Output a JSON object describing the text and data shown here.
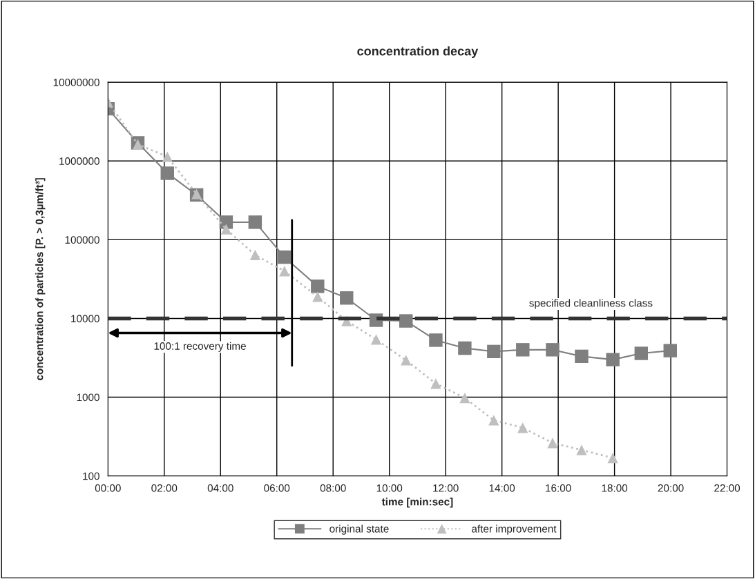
{
  "chart_data": {
    "type": "line",
    "title": "concentration decay",
    "xlabel": "time [min:sec]",
    "ylabel": "concentration of particles [P. > 0,3µm/ft³]",
    "log": "y",
    "xlim": [
      0,
      22
    ],
    "ylim": [
      100,
      10000000
    ],
    "xticks": [
      {
        "value": 0,
        "label": "00:00"
      },
      {
        "value": 2,
        "label": "02:00"
      },
      {
        "value": 4,
        "label": "04:00"
      },
      {
        "value": 6,
        "label": "06:00"
      },
      {
        "value": 8,
        "label": "08:00"
      },
      {
        "value": 10,
        "label": "10:00"
      },
      {
        "value": 12,
        "label": "12:00"
      },
      {
        "value": 14,
        "label": "14:00"
      },
      {
        "value": 16,
        "label": "16:00"
      },
      {
        "value": 18,
        "label": "18:00"
      },
      {
        "value": 20,
        "label": "20:00"
      },
      {
        "value": 22,
        "label": "22:00"
      }
    ],
    "yticks": [
      100,
      1000,
      10000,
      100000,
      1000000,
      10000000
    ],
    "grid": true,
    "legend": "bottom",
    "series": [
      {
        "name": "original state",
        "color": "#7f7f7f",
        "marker": "square",
        "line_style": "solid",
        "x": [
          0,
          1.06,
          2.11,
          3.15,
          4.2,
          5.23,
          6.27,
          7.45,
          8.48,
          9.53,
          10.59,
          11.65,
          12.68,
          13.71,
          14.74,
          15.8,
          16.83,
          17.94,
          18.95,
          19.98
        ],
        "values": [
          4600000,
          1700000,
          700000,
          370000,
          167000,
          167000,
          60000,
          25600,
          18200,
          9500,
          9300,
          5300,
          4200,
          3800,
          4000,
          4000,
          3300,
          3000,
          3600,
          3900
        ]
      },
      {
        "name": "after improvement",
        "color": "#bfbfbf",
        "marker": "triangle",
        "line_style": "dotted",
        "x": [
          0,
          1.06,
          2.11,
          3.15,
          4.2,
          5.23,
          6.27,
          7.45,
          8.48,
          9.53,
          10.59,
          11.65,
          12.68,
          13.71,
          14.74,
          15.8,
          16.83,
          17.94
        ],
        "values": [
          5600000,
          1630000,
          1130000,
          380000,
          136000,
          64000,
          40000,
          18900,
          9300,
          5400,
          2950,
          1490,
          980,
          510,
          410,
          263,
          214,
          169
        ]
      }
    ],
    "ref_lines": [
      {
        "axis": "y",
        "value": 10000,
        "label": "specified cleanliness class",
        "color": "#333333",
        "line_style": "dashed"
      },
      {
        "axis": "x",
        "value": 6.54,
        "color": "#000000",
        "line_style": "solid"
      }
    ],
    "annotations": [
      "100:1 recovery time"
    ]
  }
}
